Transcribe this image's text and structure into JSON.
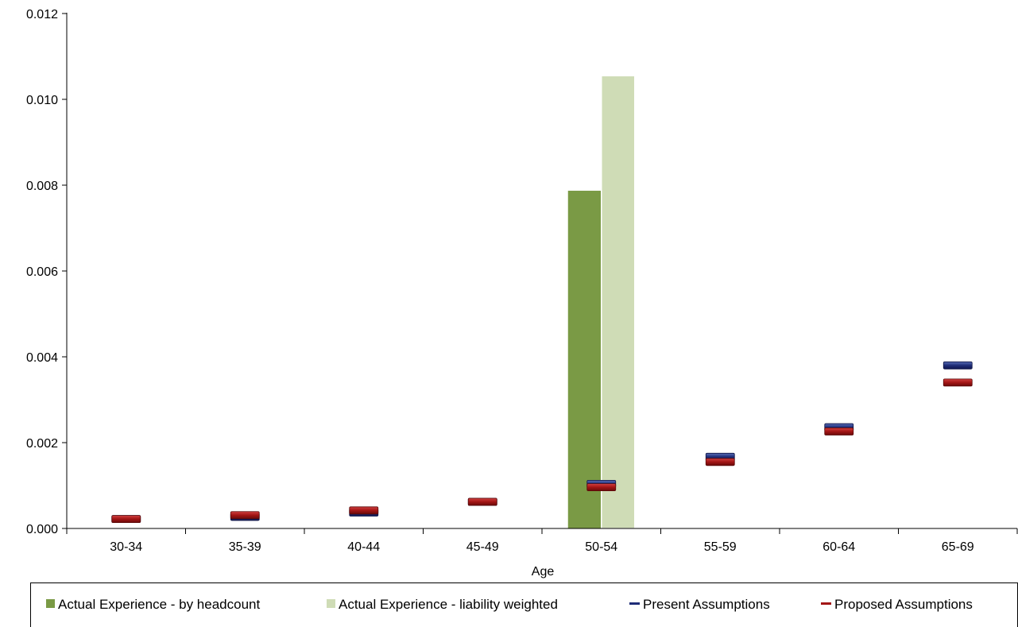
{
  "chart_data": {
    "type": "bar",
    "categories": [
      "30-34",
      "35-39",
      "40-44",
      "45-49",
      "50-54",
      "55-59",
      "60-64",
      "65-69"
    ],
    "xlabel": "Age",
    "ylabel": "",
    "ylim": [
      0,
      0.012
    ],
    "y_ticks": [
      "0.000",
      "0.002",
      "0.004",
      "0.006",
      "0.008",
      "0.010",
      "0.012"
    ],
    "grid": false,
    "legend_position": "bottom",
    "series": [
      {
        "name": "Actual Experience - by headcount",
        "kind": "bar",
        "color": "#7a9a45",
        "values": [
          0,
          0,
          0,
          0,
          0.00787,
          0,
          0,
          0
        ]
      },
      {
        "name": "Actual Experience - liability weighted",
        "kind": "bar",
        "color": "#cfdcb6",
        "values": [
          0,
          0,
          0,
          0,
          0.01055,
          0,
          0,
          0
        ]
      },
      {
        "name": "Present Assumptions",
        "kind": "marker",
        "color": "#1f2d78",
        "values": [
          0.00022,
          0.00027,
          0.00037,
          0.00062,
          0.00104,
          0.00167,
          0.00236,
          0.0038
        ]
      },
      {
        "name": "Proposed Assumptions",
        "kind": "marker",
        "color": "#a31515",
        "values": [
          0.00022,
          0.00031,
          0.00042,
          0.00062,
          0.00096,
          0.00155,
          0.00226,
          0.0034
        ]
      }
    ]
  }
}
